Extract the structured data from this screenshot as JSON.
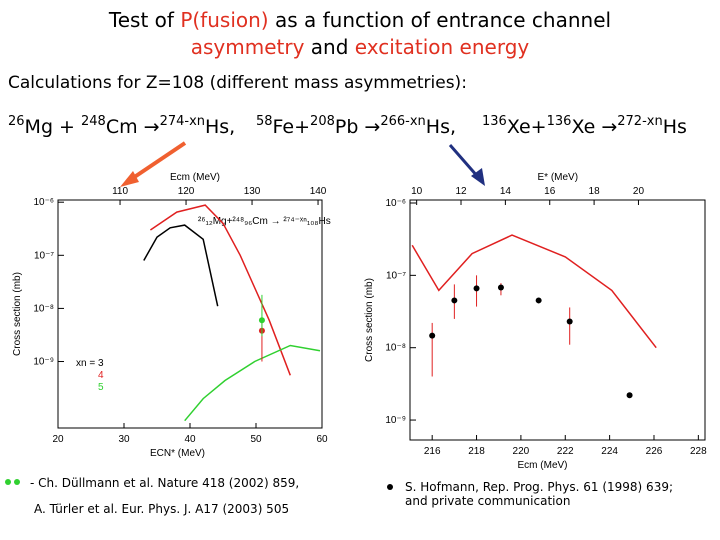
{
  "title": {
    "lines": [
      [
        {
          "text": "Test of "
        },
        {
          "text": "P(fusion)",
          "color": "#e03020"
        },
        {
          "text": " as a function of entrance channel"
        }
      ],
      [
        {
          "text": "asymmetry",
          "color": "#e03020"
        },
        {
          "text": " and "
        },
        {
          "text": "excitation energy",
          "color": "#e03020"
        }
      ]
    ]
  },
  "subtitle": "Calculations for Z=108 (different mass asymmetries):",
  "reactions": [
    [
      {
        "text": "26",
        "sup": true
      },
      {
        "text": "Mg + "
      },
      {
        "text": "248",
        "sup": true
      },
      {
        "text": "Cm →"
      },
      {
        "text": "274-xn",
        "sup": true
      },
      {
        "text": "Hs,"
      }
    ],
    [
      {
        "text": "58",
        "sup": true
      },
      {
        "text": "Fe+"
      },
      {
        "text": "208",
        "sup": true
      },
      {
        "text": "Pb →"
      },
      {
        "text": "266-xn",
        "sup": true
      },
      {
        "text": "Hs,"
      }
    ],
    [
      {
        "text": "136",
        "sup": true
      },
      {
        "text": "Xe+"
      },
      {
        "text": "136",
        "sup": true
      },
      {
        "text": "Xe →"
      },
      {
        "text": "272-xn",
        "sup": true
      },
      {
        "text": "Hs"
      }
    ]
  ],
  "references": {
    "left": [
      "- Ch. Düllmann et al. Nature 418 (2002) 859,",
      "A. Türler et al. Eur. Phys. J. A17 (2003) 505"
    ],
    "right": [
      "S. Hofmann, Rep. Prog. Phys. 61 (1998) 639;",
      "and private communication"
    ]
  },
  "chart_data": [
    {
      "type": "line",
      "xlabel": "ECN* (MeV)",
      "x2label": "Ecm (MeV)",
      "ylabel": "Cross section (mb)",
      "annotation": "²⁶₁₂Mg+²⁴⁸₉₆Cm → ²⁷⁴⁻ˣⁿ₁₀₈Hs",
      "xlim": [
        20,
        60
      ],
      "xticks": [
        20,
        30,
        40,
        50,
        60
      ],
      "x2lim": [
        100.6,
        140.6
      ],
      "x2ticks": [
        110,
        120,
        130,
        140
      ],
      "ylim": [
        5.6e-11,
        1.1e-06
      ],
      "log_y": true,
      "yticks": [
        {
          "value": 1e-06,
          "label": "10⁻⁶"
        },
        {
          "value": 1e-07,
          "label": "10⁻⁷"
        },
        {
          "value": 1e-08,
          "label": "10⁻⁸"
        },
        {
          "value": 1e-09,
          "label": "10⁻⁹"
        }
      ],
      "legend": "lower left",
      "series": [
        {
          "name": "xn = 3",
          "color": "#000000",
          "style": "line",
          "x": [
            33,
            35,
            37,
            39.2,
            42,
            44.2
          ],
          "values": [
            8e-08,
            2.2e-07,
            3.3e-07,
            3.7e-07,
            2e-07,
            1.1e-08
          ]
        },
        {
          "name": "4",
          "color": "#e02020",
          "style": "line",
          "x": [
            34,
            38,
            42.3,
            45,
            47.6,
            52,
            55.2
          ],
          "values": [
            3e-07,
            6.5e-07,
            8.8e-07,
            4e-07,
            1e-07,
            6e-09,
            5.5e-10
          ]
        },
        {
          "name": "5",
          "color": "#30d030",
          "style": "line",
          "x": [
            39.2,
            42,
            45.3,
            49.8,
            55.2,
            59.7
          ],
          "values": [
            7.7e-11,
            2e-10,
            4.4e-10,
            1e-09,
            2e-09,
            1.6e-09
          ]
        },
        {
          "color": "#e02020",
          "style": "marker",
          "x": [
            50.9
          ],
          "values": [
            3.8e-09
          ],
          "err_low": [
            1e-09
          ],
          "err_high": [
            6e-09
          ]
        },
        {
          "color": "#30d030",
          "style": "marker",
          "x": [
            50.9
          ],
          "values": [
            6e-09
          ],
          "err_low": [
            3e-09
          ],
          "err_high": [
            1.8e-08
          ]
        }
      ]
    },
    {
      "type": "line",
      "xlabel": "Ecm (MeV)",
      "x2label": "E* (MeV)",
      "ylabel": "Cross section (mb)",
      "xlim": [
        215,
        228.3
      ],
      "xticks": [
        216,
        218,
        220,
        222,
        224,
        226,
        228
      ],
      "x2lim": [
        9.7,
        23
      ],
      "x2ticks": [
        10,
        12,
        14,
        16,
        18,
        20
      ],
      "ylim": [
        5.3e-10,
        1.1e-06
      ],
      "log_y": true,
      "yticks": [
        {
          "value": 1e-06,
          "label": "10⁻⁶"
        },
        {
          "value": 1e-07,
          "label": "10⁻⁷"
        },
        {
          "value": 1e-08,
          "label": "10⁻⁸"
        },
        {
          "value": 1e-09,
          "label": "10⁻⁹"
        }
      ],
      "series": [
        {
          "color": "#e02020",
          "style": "line",
          "x": [
            215.1,
            216.3,
            217.8,
            219.6,
            222,
            224.1,
            226.1
          ],
          "values": [
            2.6e-07,
            6.2e-08,
            2e-07,
            3.6e-07,
            1.8e-07,
            6.2e-08,
            1e-08
          ]
        },
        {
          "color": "#000000",
          "style": "marker",
          "x": [
            216,
            217,
            218,
            219.1,
            220.8,
            222.2,
            224.9
          ],
          "values": [
            1.47e-08,
            4.5e-08,
            6.6e-08,
            6.8e-08,
            4.5e-08,
            2.3e-08,
            2.2e-09
          ],
          "err_low": [
            4e-09,
            2.5e-08,
            3.7e-08,
            5.3e-08,
            4.5e-08,
            1.1e-08,
            2.2e-09
          ],
          "err_high": [
            2.2e-08,
            7.5e-08,
            1e-07,
            7.8e-08,
            4.5e-08,
            3.6e-08,
            2.2e-09
          ]
        }
      ]
    }
  ]
}
